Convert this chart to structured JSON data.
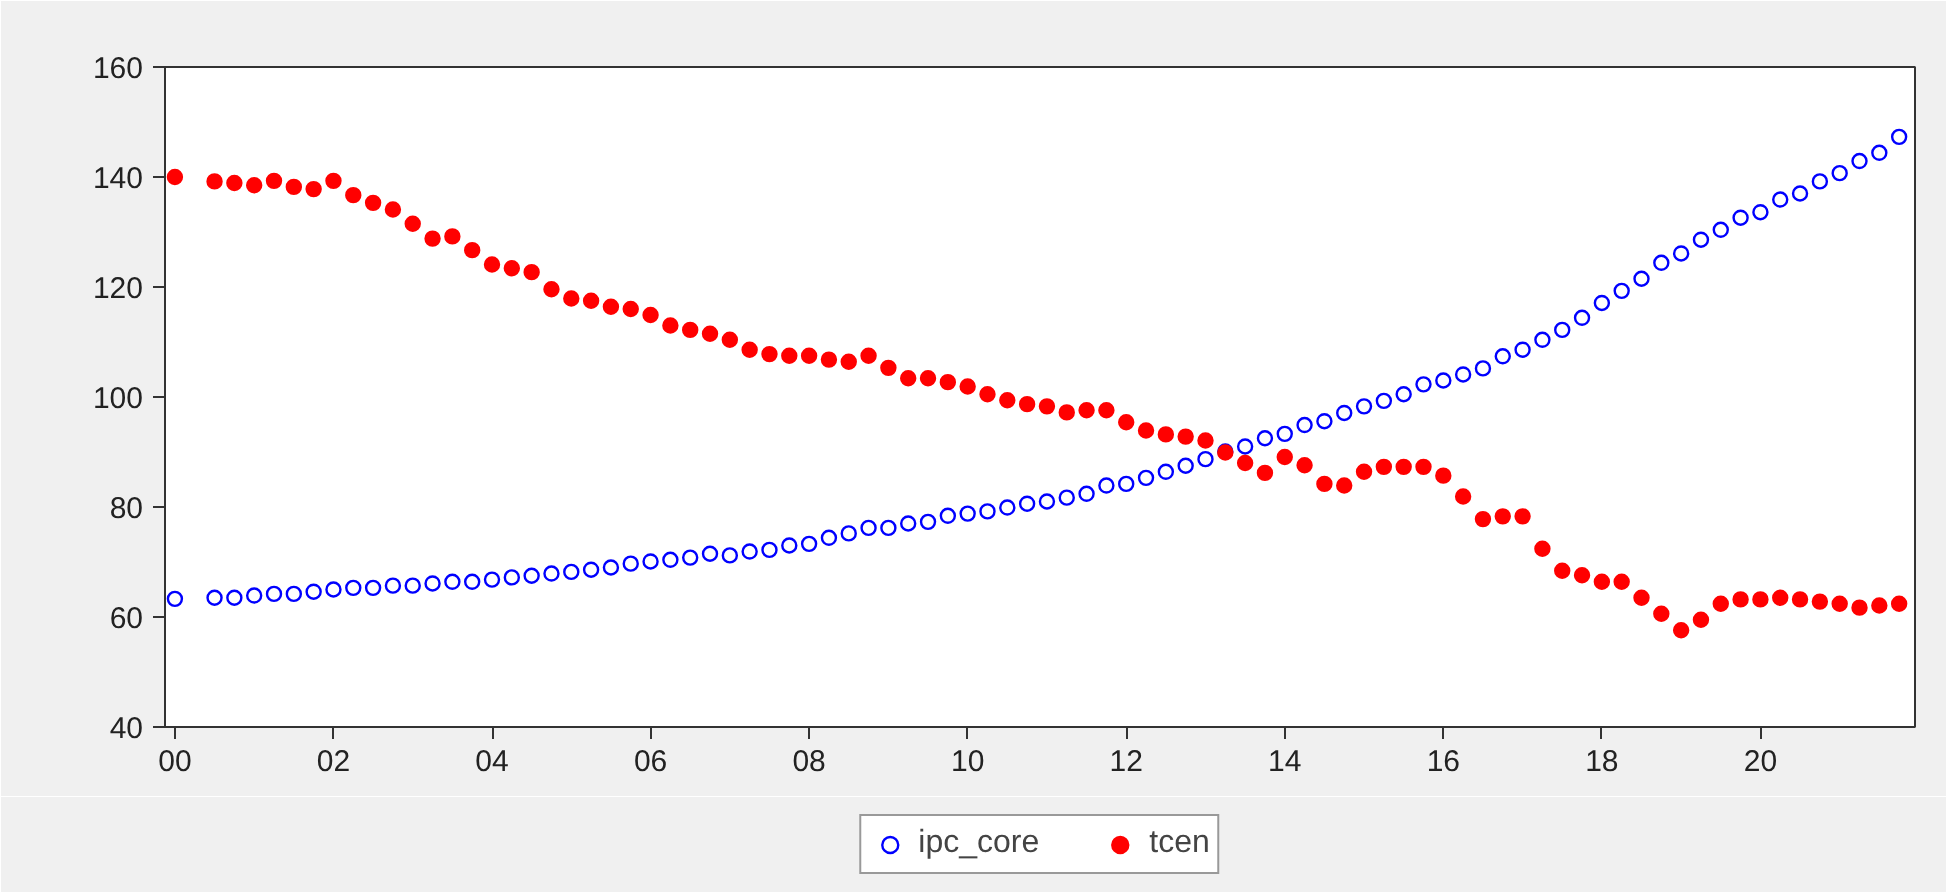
{
  "chart_data": {
    "type": "scatter",
    "x": [
      2000,
      2000.25,
      2000.5,
      2000.75,
      2001,
      2001.25,
      2001.5,
      2001.75,
      2002,
      2002.25,
      2002.5,
      2002.75,
      2003,
      2003.25,
      2003.5,
      2003.75,
      2004,
      2004.25,
      2004.5,
      2004.75,
      2005,
      2005.25,
      2005.5,
      2005.75,
      2006,
      2006.25,
      2006.5,
      2006.75,
      2007,
      2007.25,
      2007.5,
      2007.75,
      2008,
      2008.25,
      2008.5,
      2008.75,
      2009,
      2009.25,
      2009.5,
      2009.75,
      2010,
      2010.25,
      2010.5,
      2010.75,
      2011,
      2011.25,
      2011.5,
      2011.75,
      2012,
      2012.25,
      2012.5,
      2012.75,
      2013,
      2013.25,
      2013.5,
      2013.75,
      2014,
      2014.25,
      2014.5,
      2014.75,
      2015,
      2015.25,
      2015.5,
      2015.75,
      2016,
      2016.25,
      2016.5,
      2016.75,
      2017,
      2017.25,
      2017.5,
      2017.75,
      2018,
      2018.25,
      2018.5,
      2018.75,
      2019,
      2019.25,
      2019.5,
      2019.75,
      2020,
      2020.25,
      2020.5,
      2020.75,
      2021,
      2021.25,
      2021.5,
      2021.75
    ],
    "series": [
      {
        "name": "ipc_core",
        "color": "#0000ff",
        "values": [
          63.3,
          null,
          63.5,
          63.5,
          63.9,
          64.2,
          64.2,
          64.6,
          65.0,
          65.3,
          65.3,
          65.7,
          65.7,
          66.1,
          66.4,
          66.4,
          66.8,
          67.2,
          67.5,
          67.9,
          68.2,
          68.6,
          69.0,
          69.7,
          70.1,
          70.4,
          70.8,
          71.5,
          71.2,
          71.9,
          72.2,
          73.0,
          73.3,
          74.4,
          75.2,
          76.2,
          76.2,
          77.0,
          77.3,
          78.4,
          78.8,
          79.2,
          79.9,
          80.6,
          81.0,
          81.7,
          82.4,
          83.9,
          84.2,
          85.3,
          86.4,
          87.5,
          88.7,
          90.1,
          91.0,
          92.5,
          93.3,
          94.9,
          95.6,
          97.1,
          98.3,
          99.3,
          100.5,
          102.3,
          103.0,
          104.1,
          105.2,
          107.4,
          108.6,
          110.4,
          112.2,
          114.4,
          117.1,
          119.3,
          121.5,
          124.4,
          126.1,
          128.6,
          130.4,
          132.6,
          133.6,
          135.9,
          137.0,
          139.2,
          140.7,
          142.9,
          144.4,
          147.3
        ]
      },
      {
        "name": "tcen",
        "color": "#ff0000",
        "values": [
          140.0,
          null,
          139.2,
          138.9,
          138.5,
          139.3,
          138.2,
          137.8,
          139.3,
          136.7,
          135.3,
          134.1,
          131.5,
          128.8,
          129.2,
          126.7,
          124.1,
          123.4,
          122.7,
          119.6,
          117.9,
          117.5,
          116.4,
          116.0,
          114.9,
          113.0,
          112.2,
          111.5,
          110.4,
          108.6,
          107.8,
          107.5,
          107.5,
          106.8,
          106.4,
          107.5,
          105.3,
          103.4,
          103.4,
          102.7,
          101.9,
          100.5,
          99.4,
          98.7,
          98.3,
          97.2,
          97.6,
          97.6,
          95.4,
          93.9,
          93.2,
          92.8,
          92.1,
          89.9,
          88.0,
          86.2,
          89.1,
          87.6,
          84.2,
          83.9,
          86.4,
          87.3,
          87.3,
          87.3,
          85.7,
          81.9,
          77.8,
          78.3,
          78.3,
          72.4,
          68.4,
          67.6,
          66.4,
          66.4,
          63.5,
          60.6,
          57.6,
          59.5,
          62.4,
          63.2,
          63.2,
          63.5,
          63.2,
          62.8,
          62.4,
          61.7,
          62.1,
          62.4
        ]
      }
    ],
    "xlim": [
      1999.875,
      2021.95
    ],
    "xticks": [
      {
        "value": 2000,
        "label": "00"
      },
      {
        "value": 2002,
        "label": "02"
      },
      {
        "value": 2004,
        "label": "04"
      },
      {
        "value": 2006,
        "label": "06"
      },
      {
        "value": 2008,
        "label": "08"
      },
      {
        "value": 2010,
        "label": "10"
      },
      {
        "value": 2012,
        "label": "12"
      },
      {
        "value": 2014,
        "label": "14"
      },
      {
        "value": 2016,
        "label": "16"
      },
      {
        "value": 2018,
        "label": "18"
      },
      {
        "value": 2020,
        "label": "20"
      }
    ],
    "ylim": [
      40,
      160
    ],
    "yticks": [
      40,
      60,
      80,
      100,
      120,
      140,
      160
    ],
    "grid": false,
    "legend": "bottom",
    "marker": "circle"
  }
}
